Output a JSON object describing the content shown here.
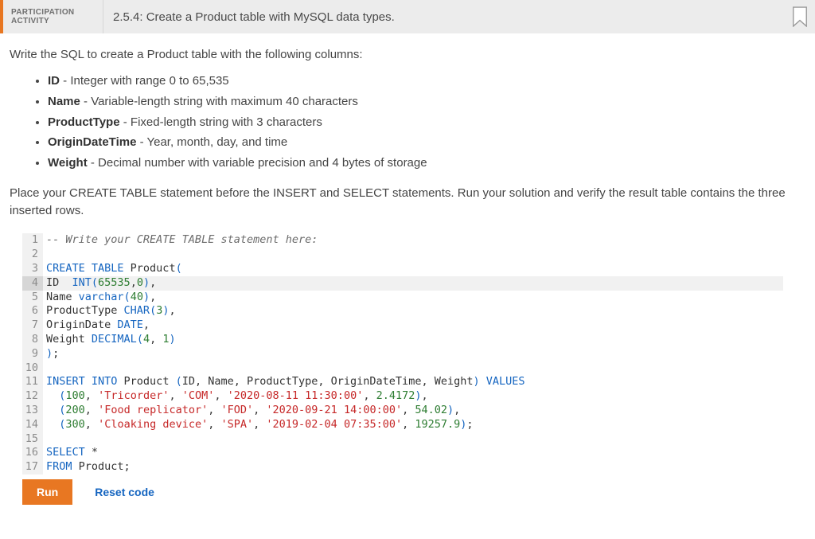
{
  "header": {
    "label_line1": "PARTICIPATION",
    "label_line2": "ACTIVITY",
    "title": "2.5.4: Create a Product table with MySQL data types."
  },
  "instruction": "Write the SQL to create a Product table with the following columns:",
  "specs": [
    {
      "name": "ID",
      "desc": " - Integer with range 0 to 65,535"
    },
    {
      "name": "Name",
      "desc": " - Variable-length string with maximum 40 characters"
    },
    {
      "name": "ProductType",
      "desc": " - Fixed-length string with 3 characters"
    },
    {
      "name": "OriginDateTime",
      "desc": " - Year, month, day, and time"
    },
    {
      "name": "Weight",
      "desc": " - Decimal number with variable precision and 4 bytes of storage"
    }
  ],
  "note": "Place your CREATE TABLE statement before the INSERT and SELECT statements. Run your solution and verify the result table contains the three inserted rows.",
  "buttons": {
    "run": "Run",
    "reset": "Reset code"
  },
  "editor": {
    "current_line": 4,
    "background_color": "#ffffff",
    "gutter_color": "#8c8c8c",
    "gutter_bg": "#f1f1f1",
    "current_gutter_bg": "#d6d6d6",
    "current_line_bg": "#f1f1f1",
    "colors": {
      "comment": "#6b6b6b",
      "keyword": "#1565c0",
      "identifier": "#333333",
      "number": "#2e7d32",
      "string": "#c62828",
      "paren": "#1565c0"
    },
    "lines": [
      {
        "n": 1,
        "tokens": [
          {
            "t": "-- Write your CREATE TABLE statement here:",
            "c": "c-comment"
          }
        ]
      },
      {
        "n": 2,
        "tokens": [
          {
            "t": "",
            "c": "c-id"
          }
        ]
      },
      {
        "n": 3,
        "tokens": [
          {
            "t": "CREATE TABLE ",
            "c": "c-kw"
          },
          {
            "t": "Product",
            "c": "c-id"
          },
          {
            "t": "(",
            "c": "c-paren"
          }
        ]
      },
      {
        "n": 4,
        "tokens": [
          {
            "t": "ID  ",
            "c": "c-id"
          },
          {
            "t": "INT",
            "c": "c-func"
          },
          {
            "t": "(",
            "c": "c-paren"
          },
          {
            "t": "65535",
            "c": "c-num"
          },
          {
            "t": ",",
            "c": "c-id"
          },
          {
            "t": "0",
            "c": "c-num"
          },
          {
            "t": ")",
            "c": "c-paren"
          },
          {
            "t": ",",
            "c": "c-id"
          }
        ]
      },
      {
        "n": 5,
        "tokens": [
          {
            "t": "Name ",
            "c": "c-id"
          },
          {
            "t": "varchar",
            "c": "c-func"
          },
          {
            "t": "(",
            "c": "c-paren"
          },
          {
            "t": "40",
            "c": "c-num"
          },
          {
            "t": ")",
            "c": "c-paren"
          },
          {
            "t": ",",
            "c": "c-id"
          }
        ]
      },
      {
        "n": 6,
        "tokens": [
          {
            "t": "ProductType ",
            "c": "c-id"
          },
          {
            "t": "CHAR",
            "c": "c-func"
          },
          {
            "t": "(",
            "c": "c-paren"
          },
          {
            "t": "3",
            "c": "c-num"
          },
          {
            "t": ")",
            "c": "c-paren"
          },
          {
            "t": ",",
            "c": "c-id"
          }
        ]
      },
      {
        "n": 7,
        "tokens": [
          {
            "t": "OriginDate ",
            "c": "c-id"
          },
          {
            "t": "DATE",
            "c": "c-func"
          },
          {
            "t": ",",
            "c": "c-id"
          }
        ]
      },
      {
        "n": 8,
        "tokens": [
          {
            "t": "Weight ",
            "c": "c-id"
          },
          {
            "t": "DECIMAL",
            "c": "c-func"
          },
          {
            "t": "(",
            "c": "c-paren"
          },
          {
            "t": "4",
            "c": "c-num"
          },
          {
            "t": ", ",
            "c": "c-id"
          },
          {
            "t": "1",
            "c": "c-num"
          },
          {
            "t": ")",
            "c": "c-paren"
          }
        ]
      },
      {
        "n": 9,
        "tokens": [
          {
            "t": ")",
            "c": "c-paren"
          },
          {
            "t": ";",
            "c": "c-id"
          }
        ]
      },
      {
        "n": 10,
        "tokens": [
          {
            "t": "",
            "c": "c-id"
          }
        ]
      },
      {
        "n": 11,
        "tokens": [
          {
            "t": "INSERT INTO ",
            "c": "c-kw"
          },
          {
            "t": "Product ",
            "c": "c-id"
          },
          {
            "t": "(",
            "c": "c-paren"
          },
          {
            "t": "ID, Name, ProductType, OriginDateTime, Weight",
            "c": "c-id"
          },
          {
            "t": ") ",
            "c": "c-paren"
          },
          {
            "t": "VALUES",
            "c": "c-kw"
          }
        ]
      },
      {
        "n": 12,
        "tokens": [
          {
            "t": "  ",
            "c": "c-id"
          },
          {
            "t": "(",
            "c": "c-paren"
          },
          {
            "t": "100",
            "c": "c-num"
          },
          {
            "t": ", ",
            "c": "c-id"
          },
          {
            "t": "'Tricorder'",
            "c": "c-str"
          },
          {
            "t": ", ",
            "c": "c-id"
          },
          {
            "t": "'COM'",
            "c": "c-str"
          },
          {
            "t": ", ",
            "c": "c-id"
          },
          {
            "t": "'2020-08-11 11:30:00'",
            "c": "c-str"
          },
          {
            "t": ", ",
            "c": "c-id"
          },
          {
            "t": "2.4172",
            "c": "c-num"
          },
          {
            "t": ")",
            "c": "c-paren"
          },
          {
            "t": ",",
            "c": "c-id"
          }
        ]
      },
      {
        "n": 13,
        "tokens": [
          {
            "t": "  ",
            "c": "c-id"
          },
          {
            "t": "(",
            "c": "c-paren"
          },
          {
            "t": "200",
            "c": "c-num"
          },
          {
            "t": ", ",
            "c": "c-id"
          },
          {
            "t": "'Food replicator'",
            "c": "c-str"
          },
          {
            "t": ", ",
            "c": "c-id"
          },
          {
            "t": "'FOD'",
            "c": "c-str"
          },
          {
            "t": ", ",
            "c": "c-id"
          },
          {
            "t": "'2020-09-21 14:00:00'",
            "c": "c-str"
          },
          {
            "t": ", ",
            "c": "c-id"
          },
          {
            "t": "54.02",
            "c": "c-num"
          },
          {
            "t": ")",
            "c": "c-paren"
          },
          {
            "t": ",",
            "c": "c-id"
          }
        ]
      },
      {
        "n": 14,
        "tokens": [
          {
            "t": "  ",
            "c": "c-id"
          },
          {
            "t": "(",
            "c": "c-paren"
          },
          {
            "t": "300",
            "c": "c-num"
          },
          {
            "t": ", ",
            "c": "c-id"
          },
          {
            "t": "'Cloaking device'",
            "c": "c-str"
          },
          {
            "t": ", ",
            "c": "c-id"
          },
          {
            "t": "'SPA'",
            "c": "c-str"
          },
          {
            "t": ", ",
            "c": "c-id"
          },
          {
            "t": "'2019-02-04 07:35:00'",
            "c": "c-str"
          },
          {
            "t": ", ",
            "c": "c-id"
          },
          {
            "t": "19257.9",
            "c": "c-num"
          },
          {
            "t": ")",
            "c": "c-paren"
          },
          {
            "t": ";",
            "c": "c-id"
          }
        ]
      },
      {
        "n": 15,
        "tokens": [
          {
            "t": "",
            "c": "c-id"
          }
        ]
      },
      {
        "n": 16,
        "tokens": [
          {
            "t": "SELECT ",
            "c": "c-kw"
          },
          {
            "t": "*",
            "c": "c-id"
          }
        ]
      },
      {
        "n": 17,
        "tokens": [
          {
            "t": "FROM ",
            "c": "c-kw"
          },
          {
            "t": "Product;",
            "c": "c-id"
          }
        ]
      }
    ]
  }
}
